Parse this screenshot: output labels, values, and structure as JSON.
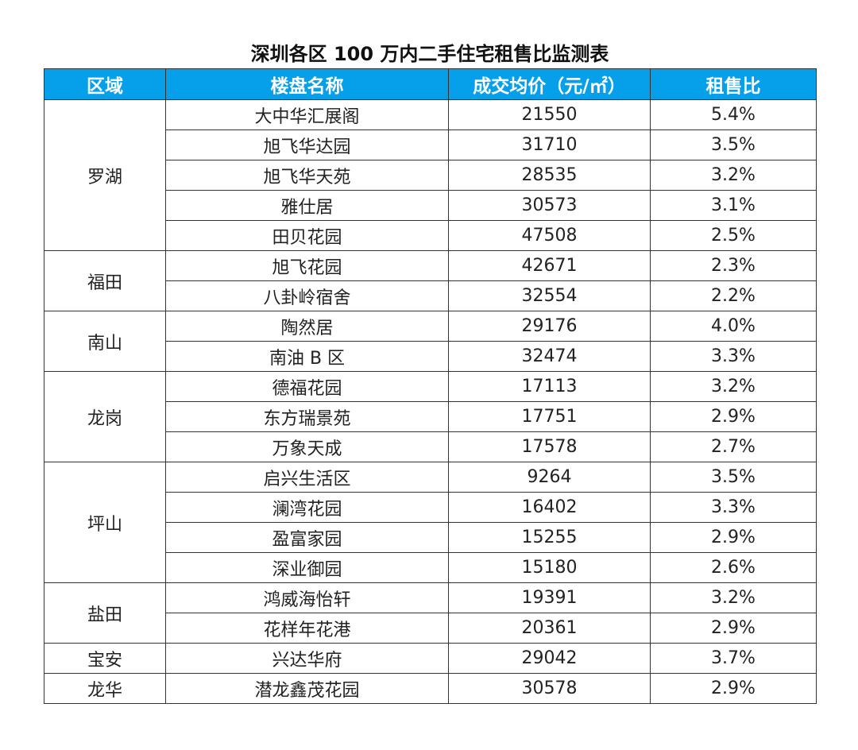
{
  "title": "深圳各区 100 万内二手住宅租售比监测表",
  "header_color": "#06a0ea",
  "columns": [
    "区域",
    "楼盘名称",
    "成交均价（元/㎡）",
    "租售比"
  ],
  "districts": [
    {
      "name": "罗湖",
      "rows": [
        {
          "estate": "大中华汇展阁",
          "price": "21550",
          "ratio": "5.4%"
        },
        {
          "estate": "旭飞华达园",
          "price": "31710",
          "ratio": "3.5%"
        },
        {
          "estate": "旭飞华天苑",
          "price": "28535",
          "ratio": "3.2%"
        },
        {
          "estate": "雅仕居",
          "price": "30573",
          "ratio": "3.1%"
        },
        {
          "estate": "田贝花园",
          "price": "47508",
          "ratio": "2.5%"
        }
      ]
    },
    {
      "name": "福田",
      "rows": [
        {
          "estate": "旭飞花园",
          "price": "42671",
          "ratio": "2.3%"
        },
        {
          "estate": "八卦岭宿舍",
          "price": "32554",
          "ratio": "2.2%"
        }
      ]
    },
    {
      "name": "南山",
      "rows": [
        {
          "estate": "陶然居",
          "price": "29176",
          "ratio": "4.0%"
        },
        {
          "estate": "南油 B 区",
          "price": "32474",
          "ratio": "3.3%"
        }
      ]
    },
    {
      "name": "龙岗",
      "rows": [
        {
          "estate": "德福花园",
          "price": "17113",
          "ratio": "3.2%"
        },
        {
          "estate": "东方瑞景苑",
          "price": "17751",
          "ratio": "2.9%"
        },
        {
          "estate": "万象天成",
          "price": "17578",
          "ratio": "2.7%"
        }
      ]
    },
    {
      "name": "坪山",
      "rows": [
        {
          "estate": "启兴生活区",
          "price": "9264",
          "ratio": "3.5%"
        },
        {
          "estate": "澜湾花园",
          "price": "16402",
          "ratio": "3.3%"
        },
        {
          "estate": "盈富家园",
          "price": "15255",
          "ratio": "2.9%"
        },
        {
          "estate": "深业御园",
          "price": "15180",
          "ratio": "2.6%"
        }
      ]
    },
    {
      "name": "盐田",
      "rows": [
        {
          "estate": "鸿威海怡轩",
          "price": "19391",
          "ratio": "3.2%"
        },
        {
          "estate": "花样年花港",
          "price": "20361",
          "ratio": "2.9%"
        }
      ]
    },
    {
      "name": "宝安",
      "rows": [
        {
          "estate": "兴达华府",
          "price": "29042",
          "ratio": "3.7%"
        }
      ]
    },
    {
      "name": "龙华",
      "rows": [
        {
          "estate": "潜龙鑫茂花园",
          "price": "30578",
          "ratio": "2.9%"
        }
      ]
    }
  ]
}
